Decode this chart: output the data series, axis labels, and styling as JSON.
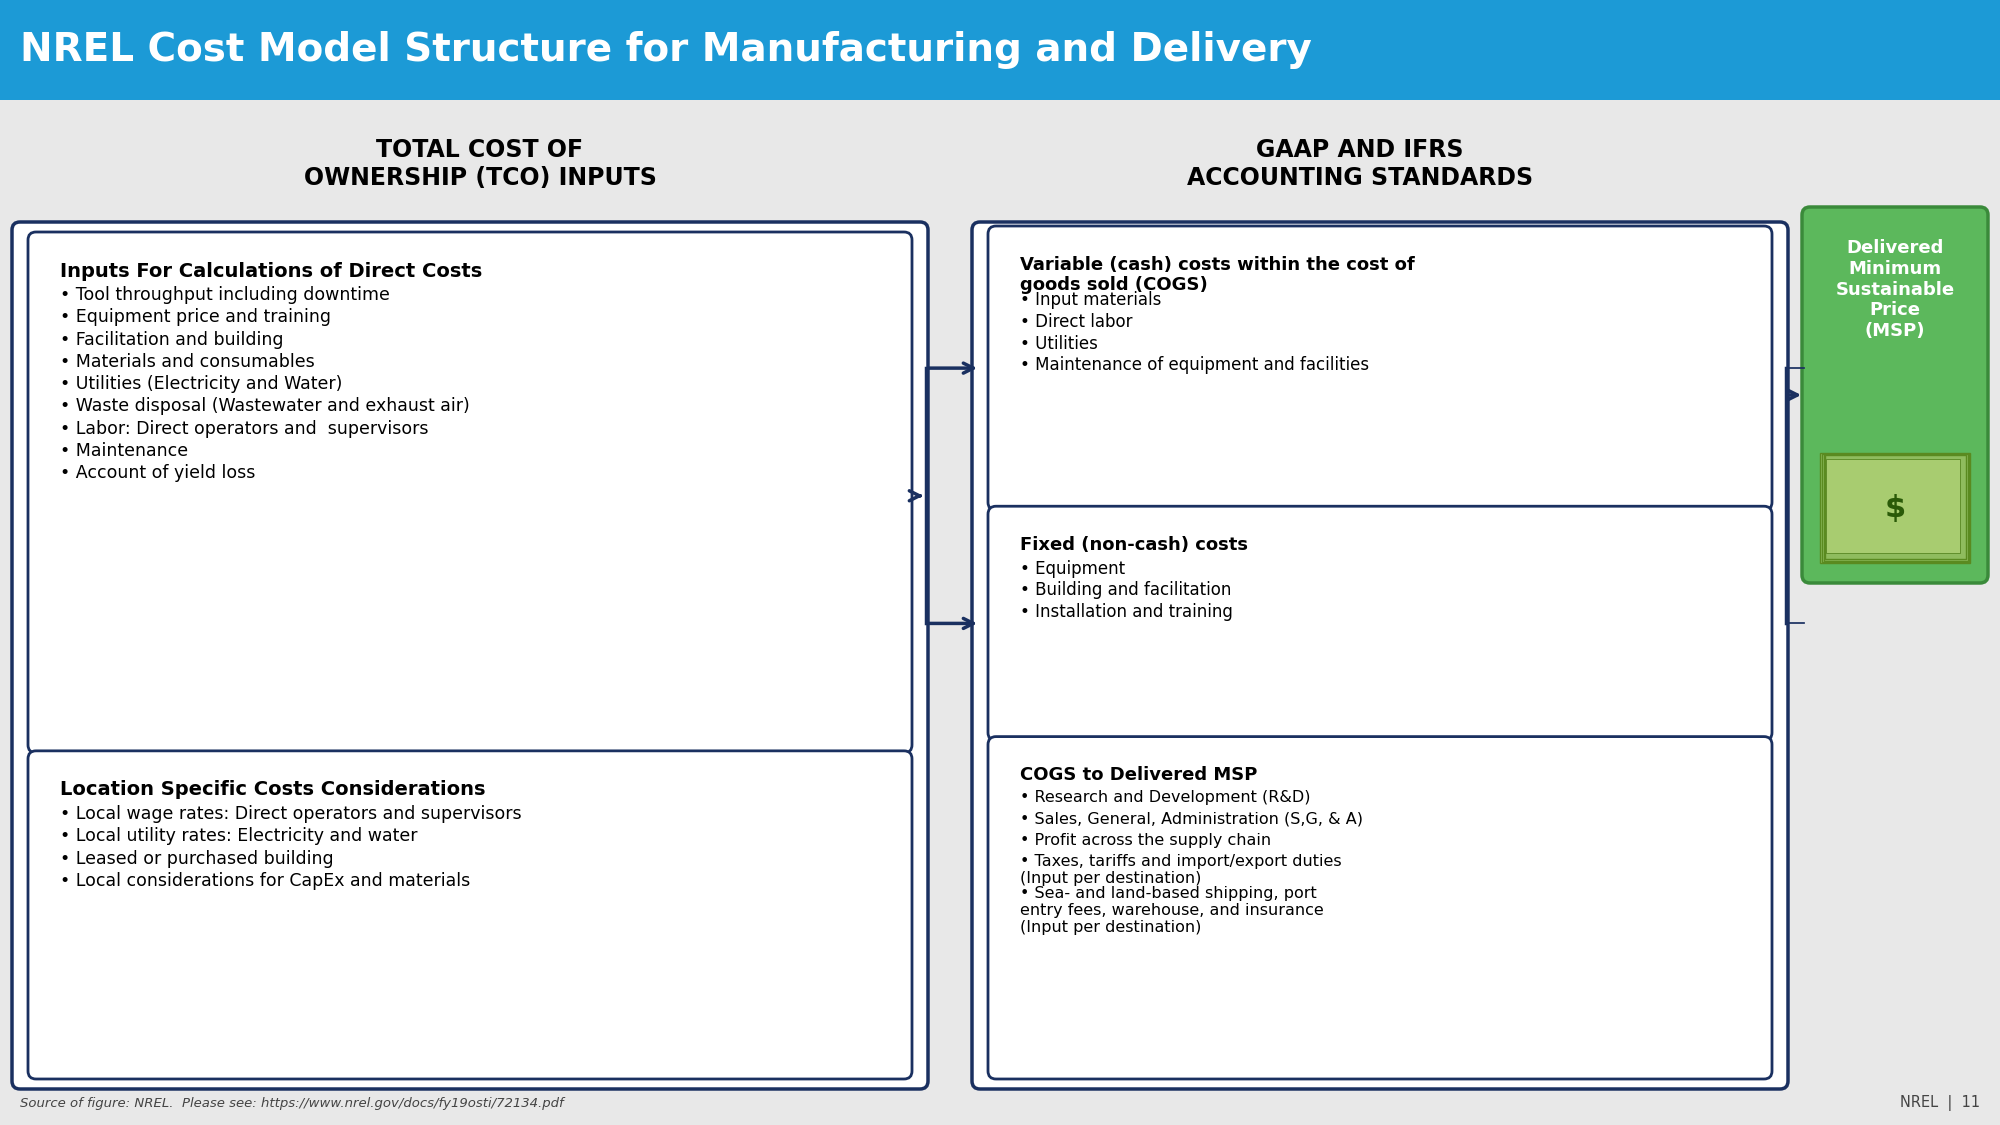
{
  "title": "NREL Cost Model Structure for Manufacturing and Delivery",
  "title_bg": "#1c9ad6",
  "title_color": "#ffffff",
  "bg_color": "#e8e8e8",
  "col1_header": "TOTAL COST OF\nOWNERSHIP (TCO) INPUTS",
  "col2_header": "GAAP AND IFRS\nACCOUNTING STANDARDS",
  "box_border_color": "#1a3060",
  "box_fill_color": "#ffffff",
  "box1_title": "Inputs For Calculations of Direct Costs",
  "box1_items": [
    "Tool throughput including downtime",
    "Equipment price and training",
    "Facilitation and building",
    "Materials and consumables",
    "Utilities (Electricity and Water)",
    "Waste disposal (Wastewater and exhaust air)",
    "Labor: Direct operators and  supervisors",
    "Maintenance",
    "Account of yield loss"
  ],
  "box2_title": "Location Specific Costs Considerations",
  "box2_items": [
    "Local wage rates: Direct operators and supervisors",
    "Local utility rates: Electricity and water",
    "Leased or purchased building",
    "Local considerations for CapEx and materials"
  ],
  "box3_title": "Variable (cash) costs within the cost of\ngoods sold (COGS)",
  "box3_items": [
    "Input materials",
    "Direct labor",
    "Utilities",
    "Maintenance of equipment and facilities"
  ],
  "box4_title": "Fixed (non-cash) costs",
  "box4_items": [
    "Equipment",
    "Building and facilitation",
    "Installation and training"
  ],
  "box5_title": "COGS to Delivered MSP",
  "box5_items": [
    "Research and Development (R&D)",
    "Sales, General, Administration (S,G, & A)",
    "Profit across the supply chain",
    "Taxes, tariffs and import/export duties\n(Input per destination)",
    "Sea- and land-based shipping, port\nentry fees, warehouse, and insurance\n(Input per destination)"
  ],
  "msp_box_title": "Delivered\nMinimum\nSustainable\nPrice\n(MSP)",
  "msp_bg": "#5cb85c",
  "msp_border": "#3a8a3a",
  "msp_text_color": "#ffffff",
  "arrow_color": "#1a3060",
  "footer_left": "Source of figure: NREL.  Please see: https://www.nrel.gov/docs/fy19osti/72134.pdf",
  "footer_right": "NREL  |  11",
  "header_text_color": "#000000"
}
